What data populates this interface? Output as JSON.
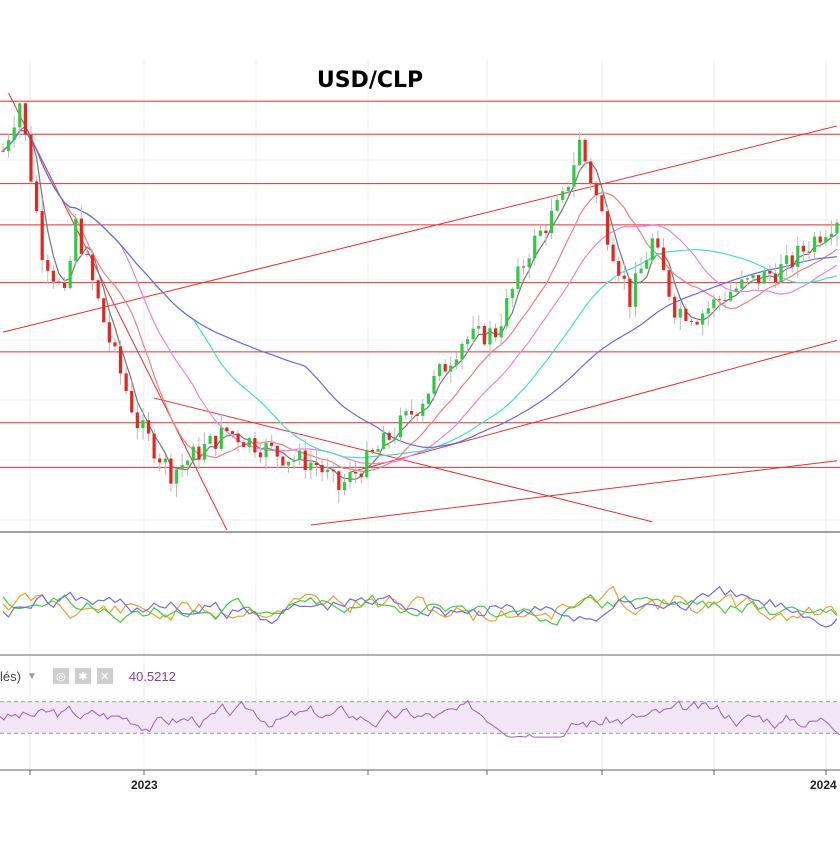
{
  "chart_data": {
    "type": "candlestick",
    "title": "USD/CLP",
    "x_tick_labels": [
      "2023",
      "2024"
    ],
    "colors": {
      "up": "#2ecc40",
      "down": "#e8241c",
      "ma_fast": "#777777",
      "ma_mid": "#f08080",
      "ma_pink": "#f080e0",
      "ma_cyan": "#40e0d0",
      "ma_slow": "#6a6ae0",
      "support_lines": "#e83030",
      "osc_orange": "#f0a030",
      "osc_green": "#40d040",
      "osc_blue": "#7070e0",
      "rsi_line": "#a060c0",
      "rsi_band": "#f3e6f7"
    },
    "grid": true,
    "rsi": {
      "label": "lés)",
      "value": "40.5212",
      "band_upper": 70,
      "band_lower": 30
    },
    "indicators": [
      "MA fast",
      "MA mid",
      "MA pink",
      "MA cyan",
      "MA slow"
    ],
    "candles_note": "weekly OHLC sequence; first candle at left edge, last at right edge"
  }
}
